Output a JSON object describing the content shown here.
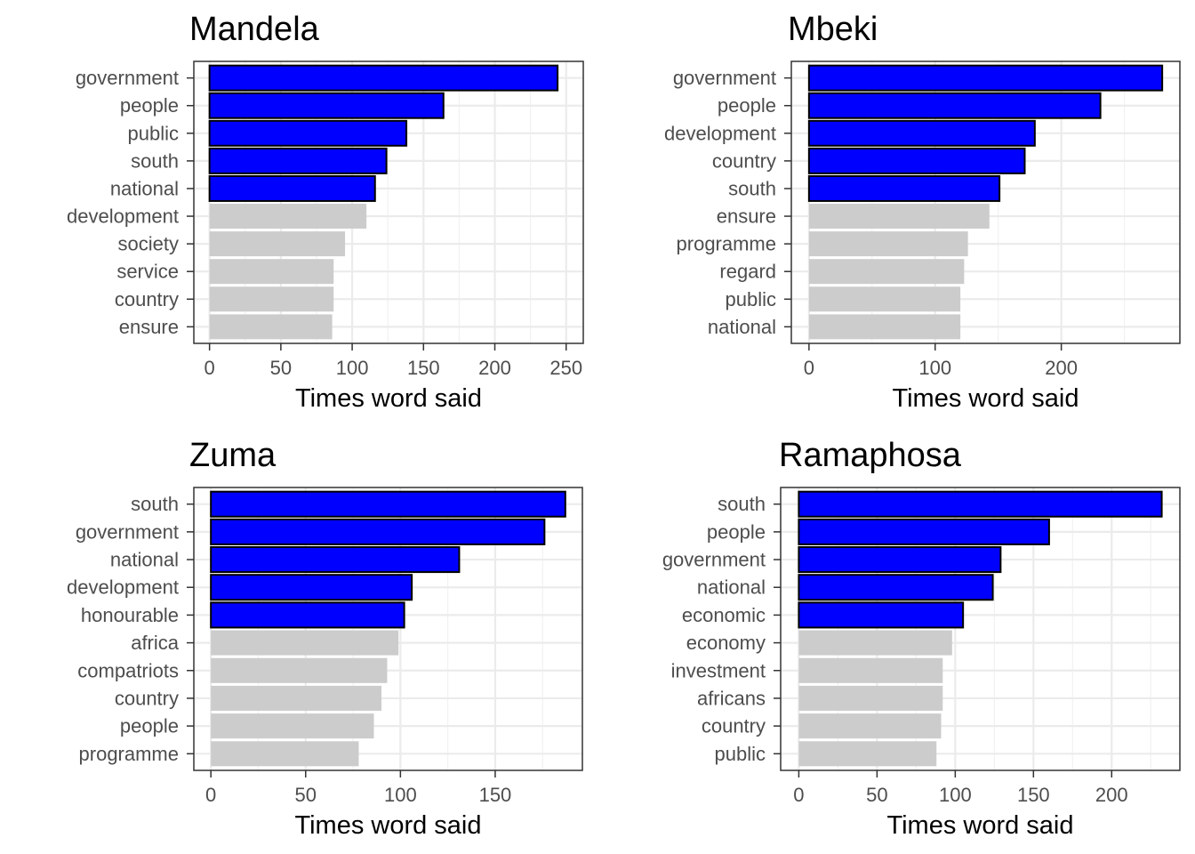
{
  "chart_data": [
    {
      "type": "bar",
      "orientation": "horizontal",
      "title": "Mandela",
      "xlabel": "Times word said",
      "ylabel": "",
      "categories": [
        "government",
        "people",
        "public",
        "south",
        "national",
        "development",
        "society",
        "service",
        "country",
        "ensure"
      ],
      "values": [
        244,
        164,
        138,
        124,
        116,
        110,
        95,
        87,
        87,
        86
      ],
      "highlighted": [
        true,
        true,
        true,
        true,
        true,
        false,
        false,
        false,
        false,
        false
      ],
      "xlim": [
        -11,
        262
      ],
      "xticks": [
        0,
        50,
        100,
        150,
        200,
        250
      ],
      "grid": true
    },
    {
      "type": "bar",
      "orientation": "horizontal",
      "title": "Mbeki",
      "xlabel": "Times word said",
      "ylabel": "",
      "categories": [
        "government",
        "people",
        "development",
        "country",
        "south",
        "ensure",
        "programme",
        "regard",
        "public",
        "national"
      ],
      "values": [
        280,
        231,
        179,
        171,
        151,
        143,
        126,
        123,
        120,
        120
      ],
      "highlighted": [
        true,
        true,
        true,
        true,
        true,
        false,
        false,
        false,
        false,
        false
      ],
      "xlim": [
        -14,
        294
      ],
      "xticks": [
        0,
        100,
        200
      ],
      "grid": true
    },
    {
      "type": "bar",
      "orientation": "horizontal",
      "title": "Zuma",
      "xlabel": "Times word said",
      "ylabel": "",
      "categories": [
        "south",
        "government",
        "national",
        "development",
        "honourable",
        "africa",
        "compatriots",
        "country",
        "people",
        "programme"
      ],
      "values": [
        187,
        176,
        131,
        106,
        102,
        99,
        93,
        90,
        86,
        78
      ],
      "highlighted": [
        true,
        true,
        true,
        true,
        true,
        false,
        false,
        false,
        false,
        false
      ],
      "xlim": [
        -9,
        196
      ],
      "xticks": [
        0,
        50,
        100,
        150
      ],
      "grid": true
    },
    {
      "type": "bar",
      "orientation": "horizontal",
      "title": "Ramaphosa",
      "xlabel": "Times word said",
      "ylabel": "",
      "categories": [
        "south",
        "people",
        "government",
        "national",
        "economic",
        "economy",
        "investment",
        "africans",
        "country",
        "public"
      ],
      "values": [
        232,
        160,
        129,
        124,
        105,
        98,
        92,
        92,
        91,
        88
      ],
      "highlighted": [
        true,
        true,
        true,
        true,
        true,
        false,
        false,
        false,
        false,
        false
      ],
      "xlim": [
        -11.6,
        243.6
      ],
      "xticks": [
        0,
        50,
        100,
        150,
        200
      ],
      "grid": true
    }
  ],
  "colors": {
    "highlight_fill": "#0000ff",
    "highlight_stroke": "#000000",
    "other_fill": "#cccccc",
    "grid_major": "#ebebeb",
    "grid_minor": "#f2f2f2",
    "panel_border": "#333333",
    "tick_text": "#4d4d4d"
  }
}
